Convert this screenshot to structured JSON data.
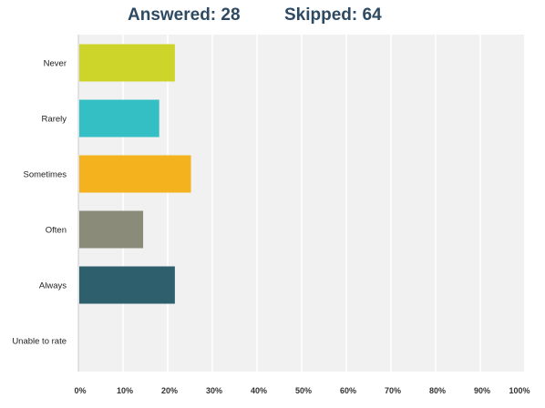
{
  "header": {
    "answered": "Answered: 28",
    "skipped": "Skipped: 64"
  },
  "chart_data": {
    "type": "bar",
    "orientation": "horizontal",
    "categories": [
      "Never",
      "Rarely",
      "Sometimes",
      "Often",
      "Always",
      "Unable to rate"
    ],
    "values": [
      21.4,
      17.9,
      25.0,
      14.3,
      21.4,
      0
    ],
    "colors": [
      "#cdd52a",
      "#34bfc4",
      "#f4b21f",
      "#8b8b7a",
      "#2d5f6c",
      "#999999"
    ],
    "xlim": [
      0,
      100
    ],
    "xticks": [
      "0%",
      "10%",
      "20%",
      "30%",
      "40%",
      "50%",
      "60%",
      "70%",
      "80%",
      "90%",
      "100%"
    ],
    "grid": true,
    "plot_background": "#f1f1f1",
    "grid_color": "#ffffff",
    "title": "",
    "xlabel": "",
    "ylabel": ""
  }
}
